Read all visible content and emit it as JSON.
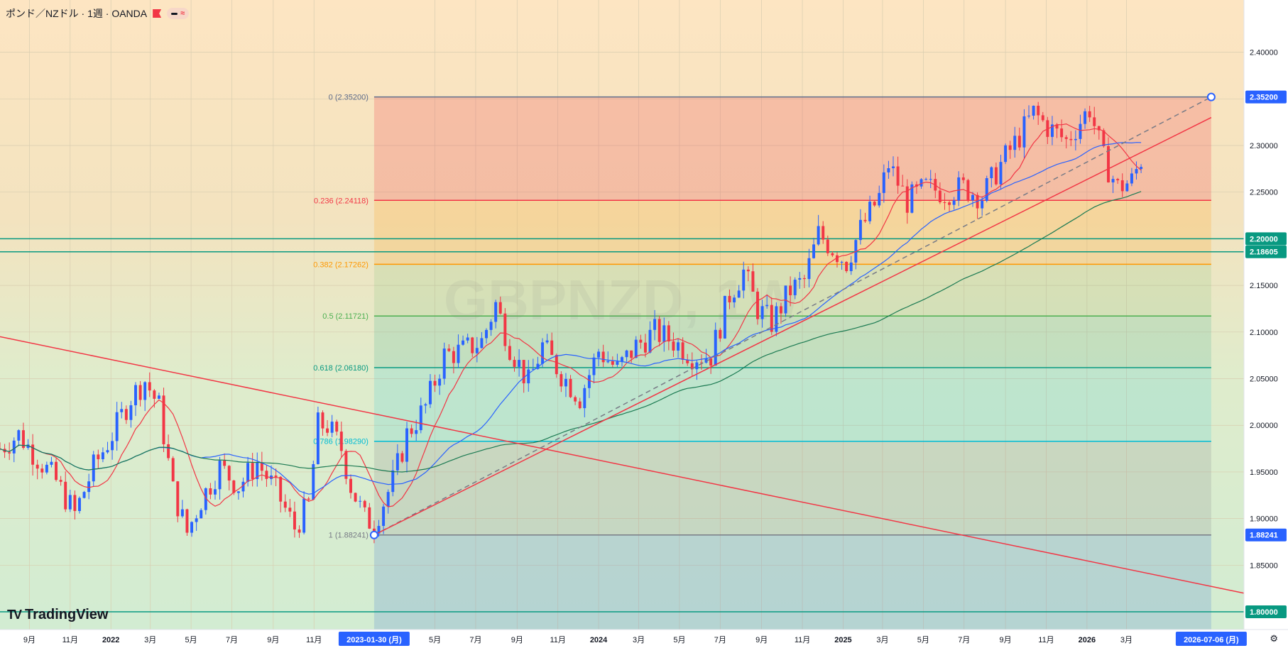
{
  "header": {
    "symbol_title": "ポンド／NZドル · 1週 · OANDA",
    "flag_icon": "flag-icon",
    "indicator_toggle_icon": "minus-icon",
    "indicator_wave_icon": "wave-icon",
    "indicator_wave_glyph": "≈"
  },
  "watermark": "GBPNZD, 1W",
  "brand": {
    "name": "TradingView",
    "logo_glyph": "TV"
  },
  "settings_icon": "gear-icon",
  "settings_glyph": "⚙",
  "colors": {
    "up_candle": "#2962ff",
    "down_candle": "#f23645",
    "ma_short": "#f23645",
    "ma_mid": "#2962ff",
    "ma_long": "#1b7a52",
    "horizontal_level": "#089981"
  },
  "chart_data": {
    "type": "candlestick",
    "timeframe": "1W",
    "y_axis": {
      "ticks": [
        "2.40000",
        "2.35000",
        "2.30000",
        "2.25000",
        "2.20000",
        "2.15000",
        "2.10000",
        "2.05000",
        "2.00000",
        "1.95000",
        "1.90000",
        "1.85000",
        "1.80000"
      ],
      "range": [
        1.781,
        2.456
      ]
    },
    "x_axis": {
      "ticks": [
        "9月",
        "11月",
        "2022",
        "3月",
        "5月",
        "7月",
        "9月",
        "11月",
        "5月",
        "7月",
        "9月",
        "11月",
        "2024",
        "3月",
        "5月",
        "7月",
        "9月",
        "11月",
        "2025",
        "3月",
        "5月",
        "7月",
        "9月",
        "11月",
        "2026",
        "3月"
      ],
      "range": [
        "2021-07-19",
        "2026-08-24"
      ],
      "cursor_labels": [
        "2023-01-30 (月)",
        "2026-07-06 (月)"
      ]
    },
    "price_labels": [
      {
        "value": 2.352,
        "text": "2.35200",
        "color": "#2962ff"
      },
      {
        "value": 2.2,
        "text": "2.20000",
        "color": "#089981"
      },
      {
        "value": 2.18605,
        "text": "2.18605",
        "color": "#089981"
      },
      {
        "value": 1.88241,
        "text": "1.88241",
        "color": "#2962ff"
      },
      {
        "value": 1.8,
        "text": "1.80000",
        "color": "#089981"
      }
    ],
    "fibonacci": {
      "start": {
        "date": "2023-01-30",
        "price": 1.88241
      },
      "end": {
        "date": "2026-07-06",
        "price": 2.352
      },
      "levels": [
        {
          "label": "0 (2.35200)",
          "value": 2.352,
          "color": "#5d6b8a"
        },
        {
          "label": "0.236 (2.24118)",
          "value": 2.24118,
          "color": "#f23645"
        },
        {
          "label": "0.382 (2.17262)",
          "value": 2.17262,
          "color": "#ff9800"
        },
        {
          "label": "0.5 (2.11721)",
          "value": 2.11721,
          "color": "#4caf50"
        },
        {
          "label": "0.618 (2.06180)",
          "value": 2.0618,
          "color": "#089981"
        },
        {
          "label": "0.786 (1.98290)",
          "value": 1.9829,
          "color": "#00bcd4"
        },
        {
          "label": "1 (1.88241)",
          "value": 1.88241,
          "color": "#787b86"
        }
      ]
    },
    "horizontal_lines": [
      2.2,
      2.18605,
      1.8
    ],
    "trend_lines": [
      {
        "name": "",
        "style": "solid",
        "color": "#f23645",
        "from": {
          "date": "2021-07-19",
          "price": 2.095
        },
        "to": {
          "date": "2026-08-24",
          "price": 1.82
        }
      },
      {
        "name": "",
        "style": "dashed",
        "color": "#787b86",
        "from": {
          "date": "2023-01-30",
          "price": 1.88241
        },
        "to": {
          "date": "2026-07-06",
          "price": 2.352
        }
      },
      {
        "name": "",
        "style": "solid",
        "color": "#f23645",
        "from": {
          "date": "2023-01-30",
          "price": 1.88241
        },
        "to": {
          "date": "2026-07-06",
          "price": 2.33
        }
      }
    ],
    "ohlc_weekly_close_path": [
      [
        "2021-07-19",
        1.975
      ],
      [
        "2021-08-16",
        1.99
      ],
      [
        "2021-09-13",
        1.965
      ],
      [
        "2021-10-11",
        1.94
      ],
      [
        "2021-11-08",
        1.905
      ],
      [
        "2021-12-06",
        1.955
      ],
      [
        "2022-01-03",
        1.99
      ],
      [
        "2022-01-31",
        2.03
      ],
      [
        "2022-02-21",
        2.048
      ],
      [
        "2022-03-14",
        2.02
      ],
      [
        "2022-04-04",
        1.93
      ],
      [
        "2022-04-25",
        1.885
      ],
      [
        "2022-05-16",
        1.92
      ],
      [
        "2022-06-13",
        1.955
      ],
      [
        "2022-07-11",
        1.935
      ],
      [
        "2022-08-08",
        1.96
      ],
      [
        "2022-09-05",
        1.93
      ],
      [
        "2022-10-03",
        1.89
      ],
      [
        "2022-10-24",
        1.915
      ],
      [
        "2022-11-07",
        2.0
      ],
      [
        "2022-11-21",
        2.0
      ],
      [
        "2022-12-12",
        1.975
      ],
      [
        "2022-12-26",
        1.935
      ],
      [
        "2023-01-16",
        1.9
      ],
      [
        "2023-01-30",
        1.895
      ],
      [
        "2023-02-27",
        1.94
      ],
      [
        "2023-03-20",
        1.99
      ],
      [
        "2023-04-17",
        2.02
      ],
      [
        "2023-05-15",
        2.075
      ],
      [
        "2023-06-12",
        2.08
      ],
      [
        "2023-07-10",
        2.09
      ],
      [
        "2023-07-31",
        2.13
      ],
      [
        "2023-08-21",
        2.085
      ],
      [
        "2023-09-18",
        2.045
      ],
      [
        "2023-10-09",
        2.085
      ],
      [
        "2023-11-06",
        2.055
      ],
      [
        "2023-12-04",
        2.03
      ],
      [
        "2024-01-01",
        2.08
      ],
      [
        "2024-01-29",
        2.06
      ],
      [
        "2024-02-26",
        2.085
      ],
      [
        "2024-03-25",
        2.1
      ],
      [
        "2024-04-22",
        2.09
      ],
      [
        "2024-05-20",
        2.075
      ],
      [
        "2024-06-17",
        2.075
      ],
      [
        "2024-07-15",
        2.14
      ],
      [
        "2024-08-05",
        2.165
      ],
      [
        "2024-08-26",
        2.125
      ],
      [
        "2024-09-16",
        2.11
      ],
      [
        "2024-10-14",
        2.145
      ],
      [
        "2024-11-04",
        2.155
      ],
      [
        "2024-11-25",
        2.205
      ],
      [
        "2024-12-16",
        2.19
      ],
      [
        "2025-01-06",
        2.175
      ],
      [
        "2025-01-27",
        2.21
      ],
      [
        "2025-02-24",
        2.245
      ],
      [
        "2025-03-10",
        2.28
      ],
      [
        "2025-04-07",
        2.24
      ],
      [
        "2025-05-05",
        2.255
      ],
      [
        "2025-06-02",
        2.25
      ],
      [
        "2025-06-30",
        2.255
      ],
      [
        "2025-07-28",
        2.245
      ],
      [
        "2025-08-25",
        2.28
      ],
      [
        "2025-09-22",
        2.31
      ],
      [
        "2025-10-13",
        2.335
      ],
      [
        "2025-11-03",
        2.32
      ],
      [
        "2025-12-01",
        2.305
      ],
      [
        "2026-01-05",
        2.34
      ],
      [
        "2026-01-26",
        2.285
      ],
      [
        "2026-02-16",
        2.255
      ],
      [
        "2026-03-09",
        2.262
      ],
      [
        "2026-03-23",
        2.285
      ]
    ],
    "moving_averages": [
      {
        "name": "",
        "color": "#f23645"
      },
      {
        "name": "",
        "color": "#2962ff"
      },
      {
        "name": "",
        "color": "#1b7a52"
      }
    ]
  }
}
